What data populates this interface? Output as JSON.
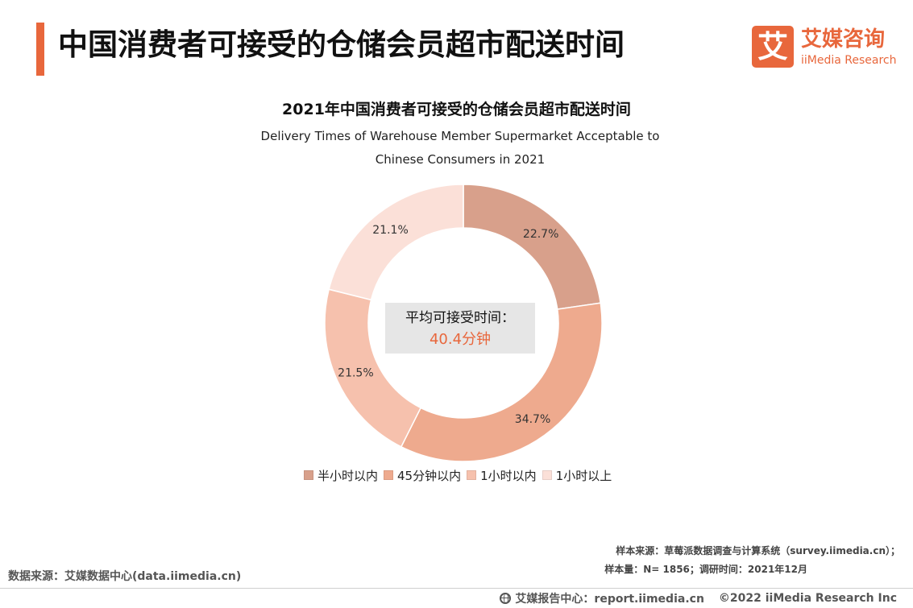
{
  "header": {
    "title": "中国消费者可接受的仓储会员超市配送时间",
    "logo_glyph": "艾",
    "logo_cn": "艾媒咨询",
    "logo_en": "iiMedia Research",
    "accent_color": "#e8673c"
  },
  "chart_data": {
    "type": "pie",
    "donut": true,
    "title": "2021年中国消费者可接受的仓储会员超市配送时间",
    "subtitle_lines": [
      "Delivery Times of Warehouse Member Supermarket Acceptable to",
      "Chinese Consumers in 2021"
    ],
    "categories": [
      "半小时以内",
      "45分钟以内",
      "1小时以内",
      "1小时以上"
    ],
    "values": [
      22.7,
      34.7,
      21.5,
      21.1
    ],
    "labels": [
      "22.7%",
      "34.7%",
      "21.5%",
      "21.1%"
    ],
    "colors": [
      "#d8a08b",
      "#eeaa8e",
      "#f6c1ad",
      "#fbe0d8"
    ],
    "start_angle": "12 o'clock, clockwise",
    "legend_position": "bottom",
    "center_text": {
      "label": "平均可接受时间：",
      "value": "40.4分钟"
    }
  },
  "sources": {
    "sample_source": "样本来源：草莓派数据调查与计算系统（survey.iimedia.cn）；",
    "sample_size": "样本量：N= 1856；调研时间：2021年12月",
    "data_source": "数据来源：艾媒数据中心(data.iimedia.cn)"
  },
  "footer": {
    "report_center": "艾媒报告中心：report.iimedia.cn",
    "copyright": "©2022  iiMedia Research  Inc"
  }
}
